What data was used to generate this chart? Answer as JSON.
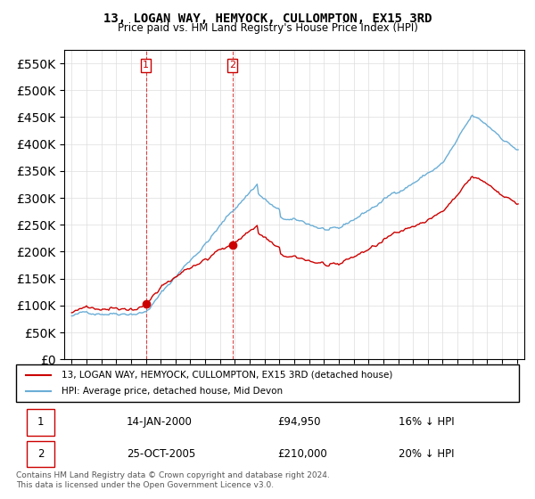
{
  "title": "13, LOGAN WAY, HEMYOCK, CULLOMPTON, EX15 3RD",
  "subtitle": "Price paid vs. HM Land Registry's House Price Index (HPI)",
  "legend_line1": "13, LOGAN WAY, HEMYOCK, CULLOMPTON, EX15 3RD (detached house)",
  "legend_line2": "HPI: Average price, detached house, Mid Devon",
  "table_rows": [
    {
      "num": "1",
      "date": "14-JAN-2000",
      "price": "£94,950",
      "hpi": "16% ↓ HPI"
    },
    {
      "num": "2",
      "date": "25-OCT-2005",
      "price": "£210,000",
      "hpi": "20% ↓ HPI"
    }
  ],
  "footnote": "Contains HM Land Registry data © Crown copyright and database right 2024.\nThis data is licensed under the Open Government Licence v3.0.",
  "sale1_year": 2000.04,
  "sale1_price": 94950,
  "sale2_year": 2005.82,
  "sale2_price": 210000,
  "hpi_color": "#6baed6",
  "price_color": "#cc0000",
  "vline_color": "#cc0000",
  "marker_color": "#cc0000",
  "background_color": "#ffffff",
  "grid_color": "#dddddd",
  "ylim_min": 0,
  "ylim_max": 575000,
  "xlabel": "",
  "ylabel": ""
}
